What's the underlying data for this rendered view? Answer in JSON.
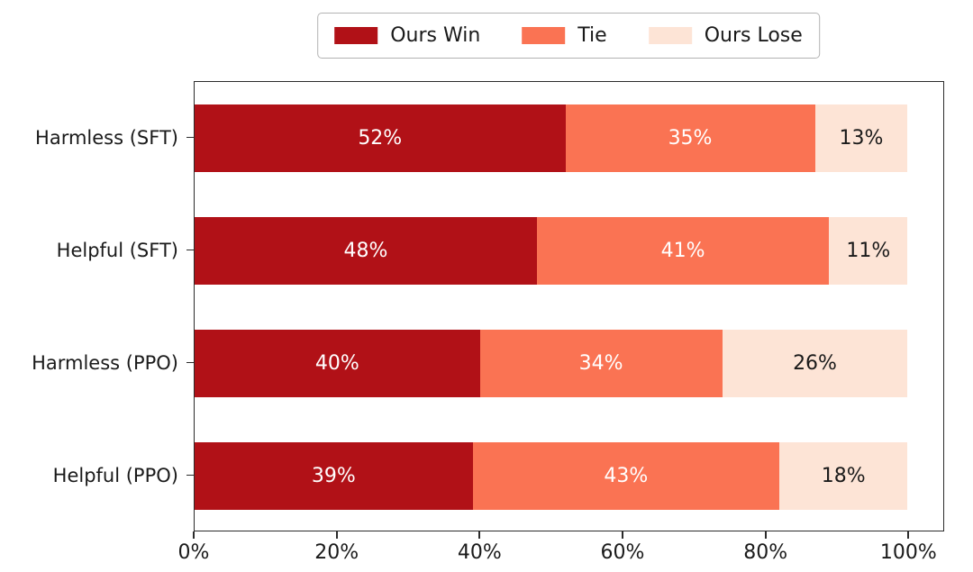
{
  "chart_data": {
    "type": "bar",
    "subtype": "horizontal-stacked",
    "title": "",
    "xlabel": "",
    "ylabel": "",
    "categories": [
      "Harmless (SFT)",
      "Helpful (SFT)",
      "Harmless (PPO)",
      "Helpful (PPO)"
    ],
    "series": [
      {
        "name": "Ours Win",
        "color": "#b11117",
        "label_color": "#ffffff",
        "values": [
          52,
          48,
          40,
          39
        ]
      },
      {
        "name": "Tie",
        "color": "#fa7353",
        "label_color": "#ffffff",
        "values": [
          35,
          41,
          34,
          43
        ]
      },
      {
        "name": "Ours Lose",
        "color": "#fde4d6",
        "label_color": "#1a1a1a",
        "values": [
          13,
          11,
          26,
          18
        ]
      }
    ],
    "value_suffix": "%",
    "x_ticks": [
      0,
      20,
      40,
      60,
      80,
      100
    ],
    "x_tick_labels": [
      "0%",
      "20%",
      "40%",
      "60%",
      "80%",
      "100%"
    ],
    "xlim": [
      0,
      105
    ],
    "grid": false,
    "legend": {
      "position": "top-center",
      "labels": [
        "Ours Win",
        "Tie",
        "Ours Lose"
      ]
    }
  },
  "colors": {
    "background": "#ffffff",
    "spine": "#2b2b2b",
    "text": "#1a1a1a",
    "legend_border": "#b3b3b3"
  }
}
